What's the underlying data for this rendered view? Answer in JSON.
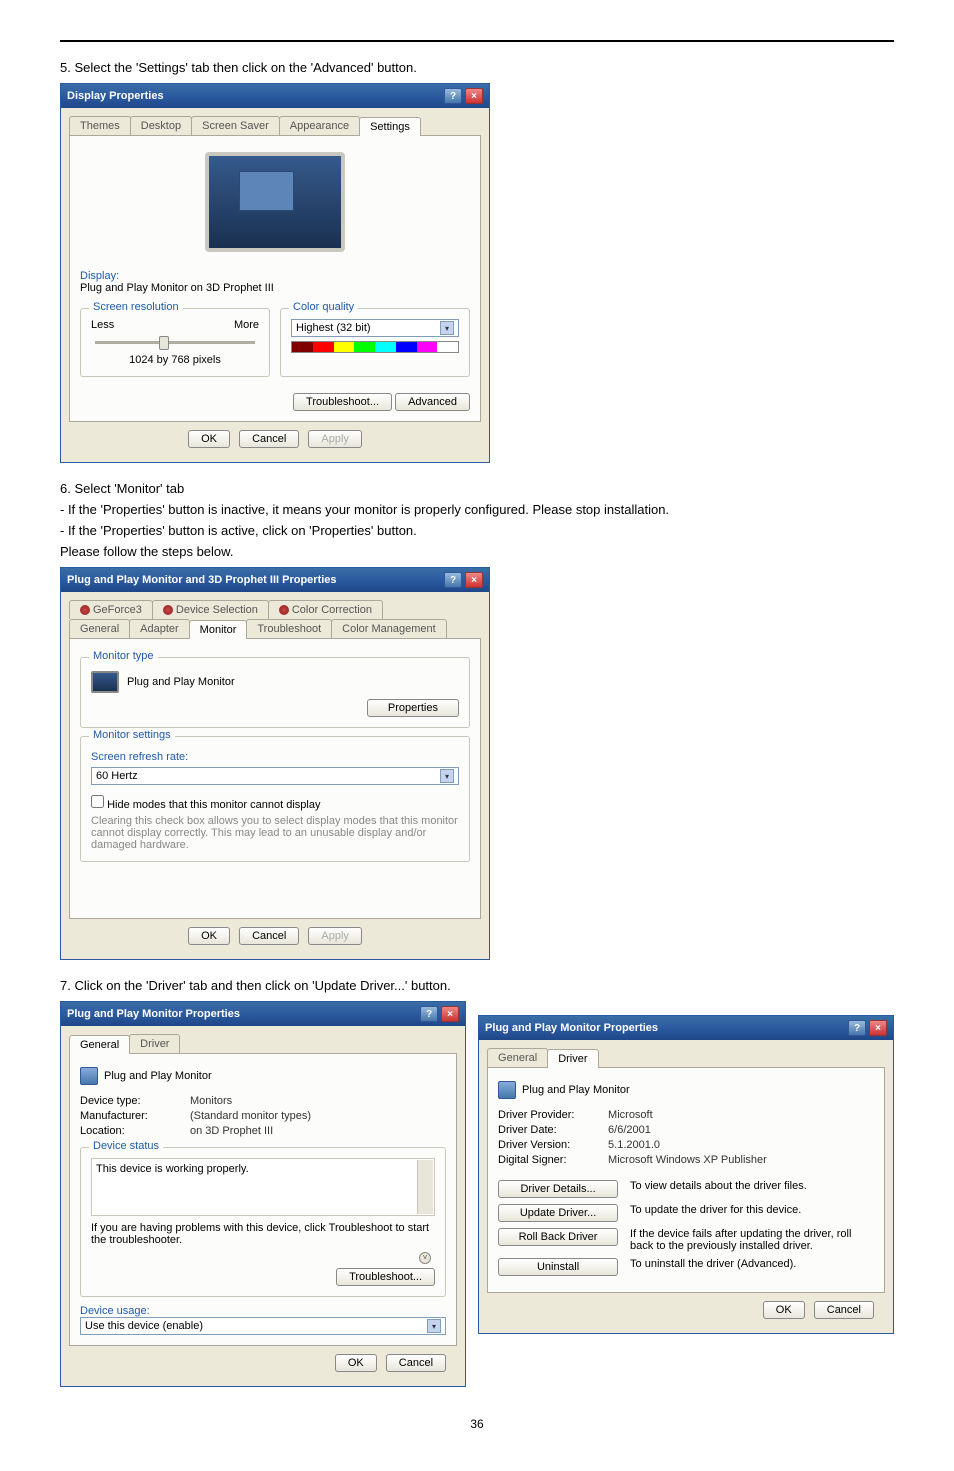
{
  "step5": "5. Select the 'Settings' tab then click on the 'Advanced' button.",
  "display_props": {
    "title": "Display Properties",
    "tabs": [
      "Themes",
      "Desktop",
      "Screen Saver",
      "Appearance",
      "Settings"
    ],
    "display_label": "Display:",
    "display_name": "Plug and Play Monitor on 3D Prophet III",
    "screen_res_title": "Screen resolution",
    "less": "Less",
    "more": "More",
    "res_text": "1024 by 768 pixels",
    "color_title": "Color quality",
    "color_value": "Highest (32 bit)",
    "colors": [
      "#800000",
      "#ff0000",
      "#ffff00",
      "#00ff00",
      "#00ffff",
      "#0000ff",
      "#ff00ff",
      "#ffffff"
    ],
    "troubleshoot": "Troubleshoot...",
    "advanced": "Advanced",
    "ok": "OK",
    "cancel": "Cancel",
    "apply": "Apply"
  },
  "step6": "6. Select 'Monitor' tab",
  "step6a": "- If the 'Properties' button is inactive, it means your monitor is properly configured. Please stop installation.",
  "step6b": "- If the 'Properties' button is active, click on 'Properties' button.",
  "step6c": "Please follow the steps below.",
  "pnp_props": {
    "title": "Plug and Play Monitor and 3D Prophet III Properties",
    "tabs_row1": [
      "GeForce3",
      "Device Selection",
      "Color Correction"
    ],
    "tabs_row2": [
      "General",
      "Adapter",
      "Monitor",
      "Troubleshoot",
      "Color Management"
    ],
    "monitor_type": "Monitor type",
    "pnp_name": "Plug and Play Monitor",
    "properties": "Properties",
    "monitor_settings": "Monitor settings",
    "refresh_label": "Screen refresh rate:",
    "refresh_val": "60 Hertz",
    "hide_modes": "Hide modes that this monitor cannot display",
    "hide_desc": "Clearing this check box allows you to select display modes that this monitor cannot display correctly. This may lead to an unusable display and/or damaged hardware.",
    "ok": "OK",
    "cancel": "Cancel",
    "apply": "Apply"
  },
  "step7": "7. Click on the 'Driver' tab and then click on 'Update Driver...' button.",
  "pnp_mon_props_left": {
    "title": "Plug and Play Monitor Properties",
    "tabs": [
      "General",
      "Driver"
    ],
    "name": "Plug and Play Monitor",
    "device_type_l": "Device type:",
    "device_type_v": "Monitors",
    "manufacturer_l": "Manufacturer:",
    "manufacturer_v": "(Standard monitor types)",
    "location_l": "Location:",
    "location_v": "on 3D Prophet III",
    "device_status": "Device status",
    "status_text": "This device is working properly.",
    "status_help": "If you are having problems with this device, click Troubleshoot to start the troubleshooter.",
    "troubleshoot": "Troubleshoot...",
    "device_usage": "Device usage:",
    "usage_val": "Use this device (enable)",
    "ok": "OK",
    "cancel": "Cancel"
  },
  "pnp_mon_props_right": {
    "title": "Plug and Play Monitor Properties",
    "tabs": [
      "General",
      "Driver"
    ],
    "name": "Plug and Play Monitor",
    "provider_l": "Driver Provider:",
    "provider_v": "Microsoft",
    "date_l": "Driver Date:",
    "date_v": "6/6/2001",
    "version_l": "Driver Version:",
    "version_v": "5.1.2001.0",
    "signer_l": "Digital Signer:",
    "signer_v": "Microsoft Windows XP Publisher",
    "details_btn": "Driver Details...",
    "details_txt": "To view details about the driver files.",
    "update_btn": "Update Driver...",
    "update_txt": "To update the driver for this device.",
    "rollback_btn": "Roll Back Driver",
    "rollback_txt": "If the device fails after updating the driver, roll back to the previously installed driver.",
    "uninstall_btn": "Uninstall",
    "uninstall_txt": "To uninstall the driver (Advanced).",
    "ok": "OK",
    "cancel": "Cancel"
  },
  "page": "36"
}
